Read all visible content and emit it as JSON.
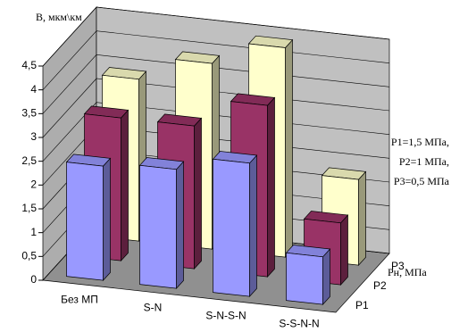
{
  "chart_data": {
    "type": "bar3d",
    "y_label": "В, мкм\\км",
    "depth_label": "Рн, МПа",
    "annotation": [
      "P1=1,5 МПа,",
      "P2=1 МПа,",
      "P3=0,5 МПа"
    ],
    "categories": [
      "Без МП",
      "S-N",
      "S-N-S-N",
      "S-S-N-N"
    ],
    "series": [
      {
        "name": "P1",
        "color": "#9999ff",
        "values": [
          2.4,
          2.5,
          2.8,
          1.0
        ]
      },
      {
        "name": "P2",
        "color": "#993366",
        "values": [
          3.0,
          3.0,
          3.6,
          1.3
        ]
      },
      {
        "name": "P3",
        "color": "#ffffcc",
        "values": [
          3.4,
          3.9,
          4.4,
          1.8
        ]
      }
    ],
    "ylim": [
      0,
      4.5
    ],
    "yticks": [
      0,
      {
        "value": 0.5,
        "label": "0,5"
      },
      1,
      {
        "value": 1.5,
        "label": "1,5"
      },
      2,
      {
        "value": 2.5,
        "label": "2,5"
      },
      3,
      {
        "value": 3.5,
        "label": "3,5"
      },
      4,
      {
        "value": 4.5,
        "label": "4,5"
      }
    ],
    "grid": true,
    "wall_color": "#c0c0c0"
  }
}
